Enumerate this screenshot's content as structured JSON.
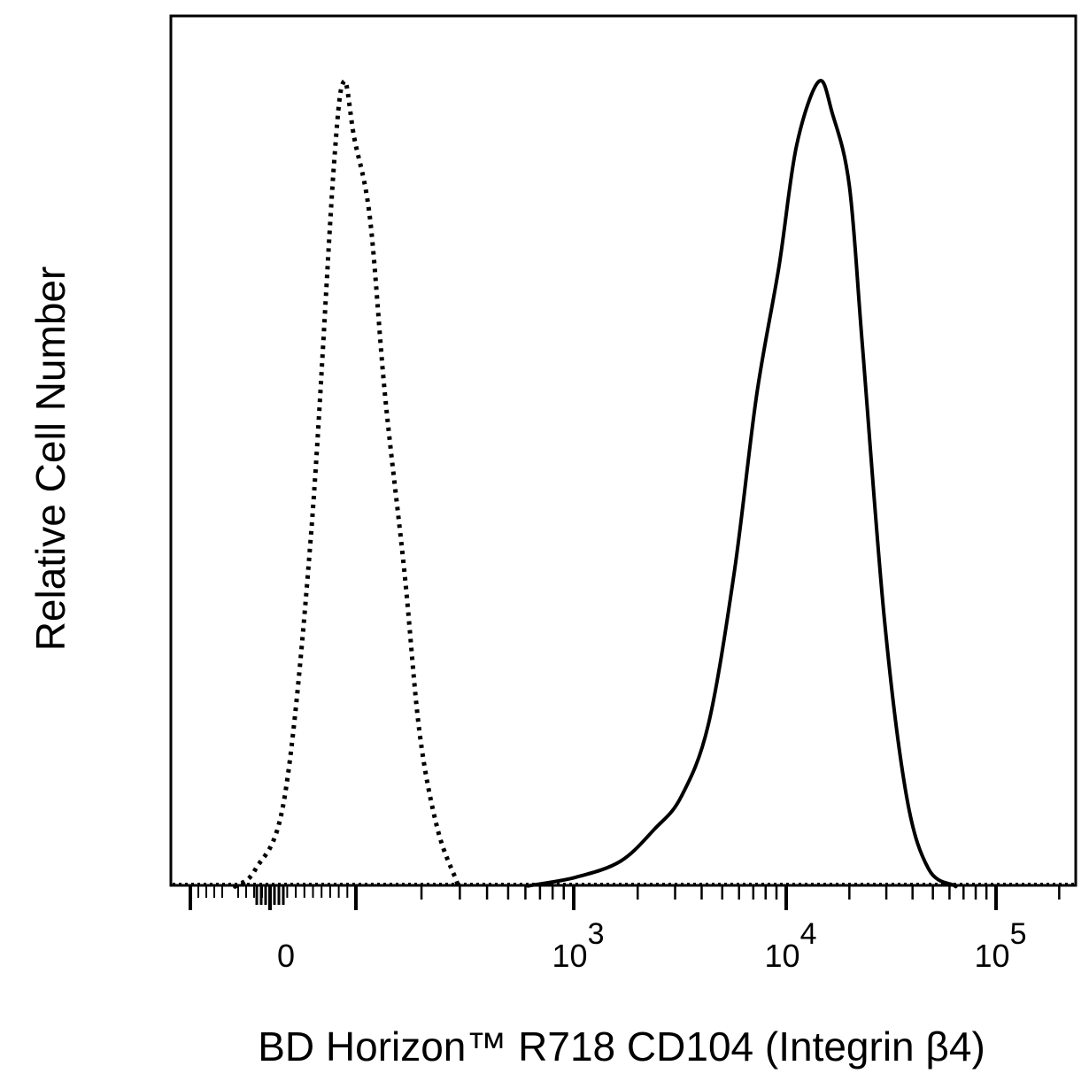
{
  "chart_data": {
    "type": "line",
    "title": "",
    "xlabel": "BD Horizon™ R718 CD104 (Integrin β4)",
    "ylabel": "Relative Cell Number",
    "x_scale": "biexponential",
    "xlim": [
      -150,
      150000
    ],
    "ylim": [
      0,
      100
    ],
    "grid": false,
    "x_tick_labels": [
      {
        "value": 0,
        "base": "0",
        "exp": ""
      },
      {
        "value": 1000,
        "base": "10",
        "exp": "3"
      },
      {
        "value": 10000,
        "base": "10",
        "exp": "4"
      },
      {
        "value": 100000,
        "base": "10",
        "exp": "5"
      }
    ],
    "series": [
      {
        "style": "dotted",
        "color": "#000000",
        "points": [
          [
            -39,
            0
          ],
          [
            -17,
            2
          ],
          [
            17,
            11
          ],
          [
            48,
            44
          ],
          [
            74,
            89
          ],
          [
            86,
            100
          ],
          [
            98,
            93
          ],
          [
            116,
            83
          ],
          [
            136,
            61
          ],
          [
            167,
            39
          ],
          [
            196,
            19
          ],
          [
            237,
            7
          ],
          [
            290,
            0.5
          ]
        ]
      },
      {
        "style": "solid",
        "color": "#000000",
        "points": [
          [
            638,
            0
          ],
          [
            1020,
            1
          ],
          [
            1660,
            3
          ],
          [
            2400,
            7
          ],
          [
            3200,
            11
          ],
          [
            4300,
            20
          ],
          [
            5700,
            39
          ],
          [
            7260,
            61
          ],
          [
            9250,
            77
          ],
          [
            11200,
            92
          ],
          [
            14300,
            100
          ],
          [
            16600,
            96
          ],
          [
            20000,
            87
          ],
          [
            23100,
            67
          ],
          [
            29400,
            33
          ],
          [
            37500,
            11
          ],
          [
            47800,
            2
          ],
          [
            63000,
            0
          ]
        ]
      }
    ]
  }
}
